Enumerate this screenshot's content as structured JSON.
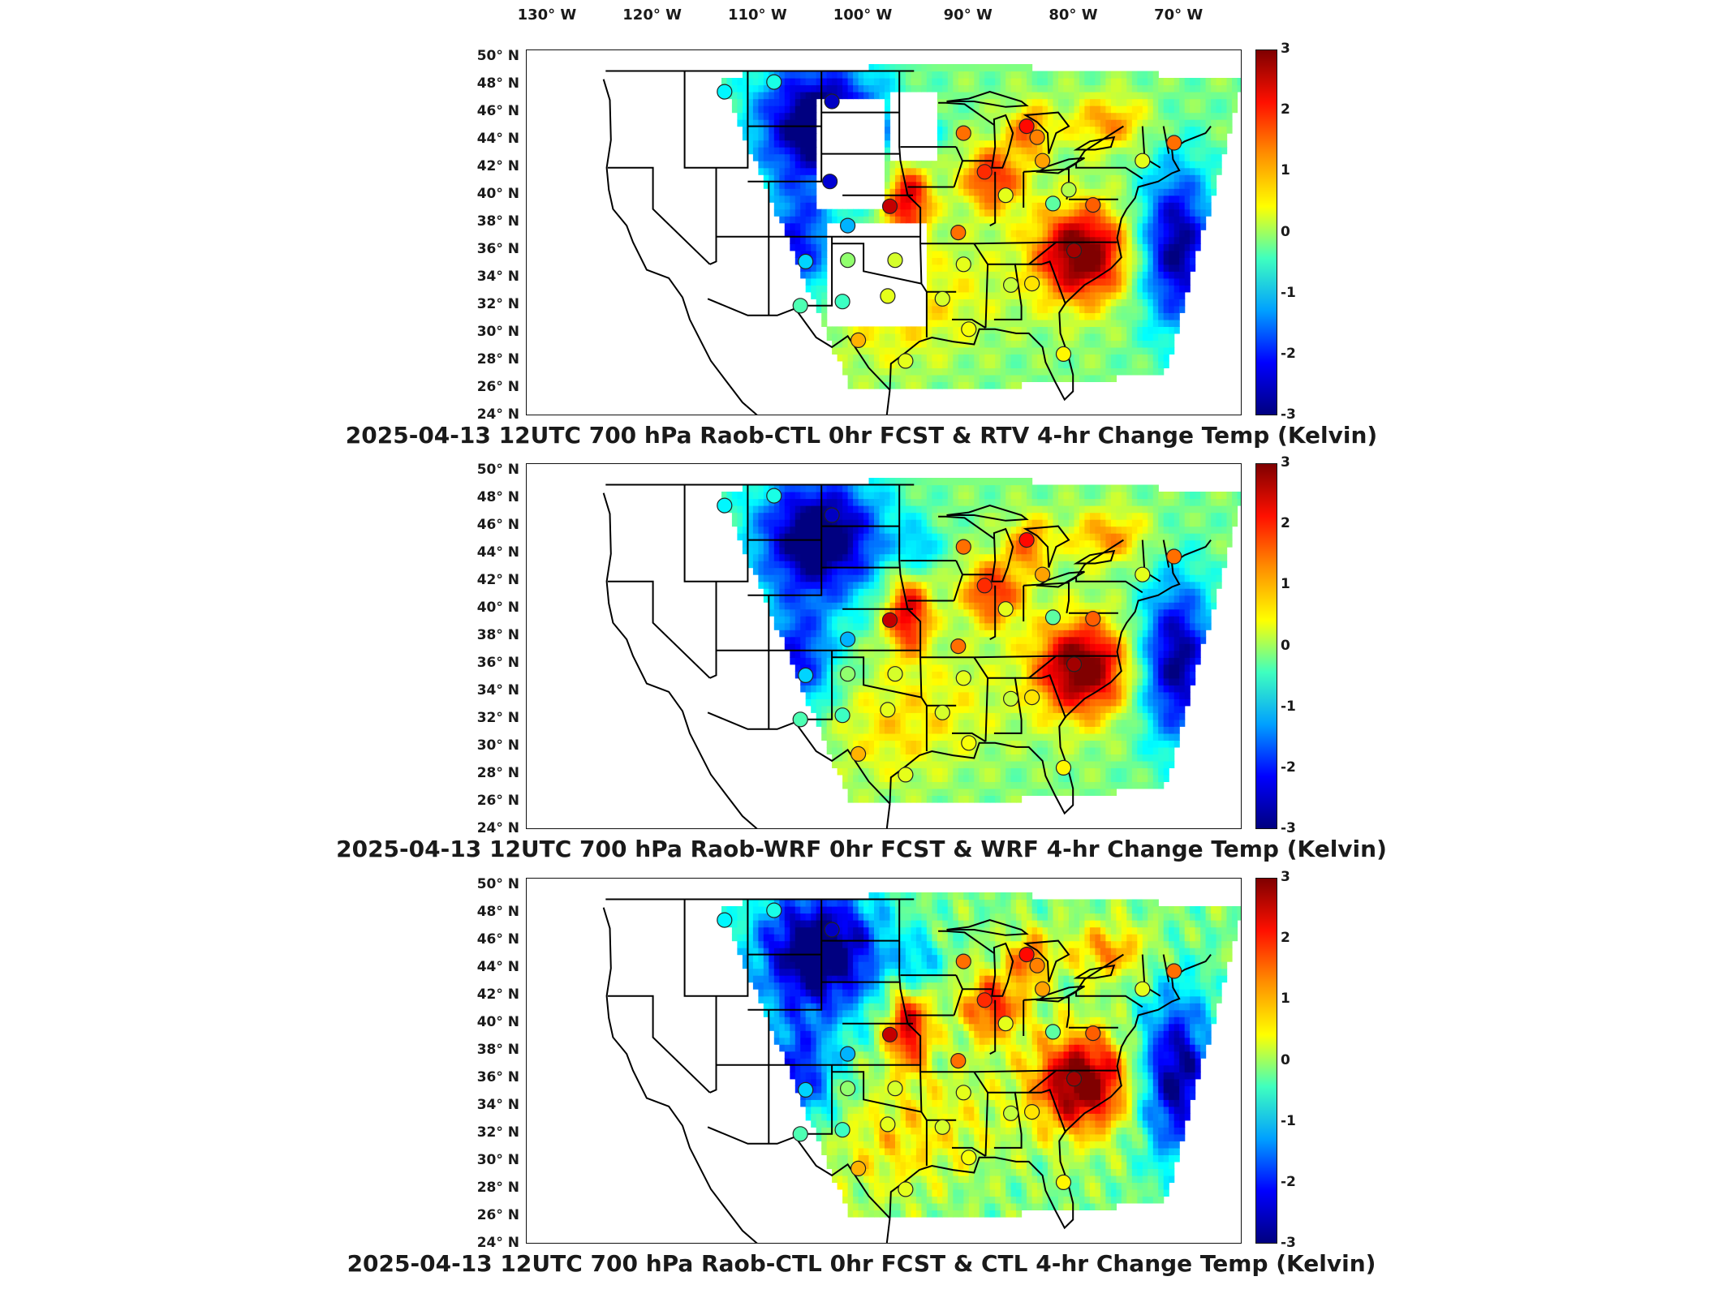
{
  "lon_labels": [
    "130° W",
    "120° W",
    "110° W",
    "100° W",
    "90° W",
    "80° W",
    "70° W"
  ],
  "lat_labels": [
    "50° N",
    "48° N",
    "46° N",
    "44° N",
    "42° N",
    "40° N",
    "38° N",
    "36° N",
    "34° N",
    "32° N",
    "30° N",
    "28° N",
    "26° N",
    "24° N"
  ],
  "colorbar": {
    "ticks": [
      "3",
      "2",
      "1",
      "0",
      "-1",
      "-2",
      "-3"
    ],
    "range": [
      -3,
      3
    ],
    "colormap": "jet",
    "colors": [
      "#00007f",
      "#0000ff",
      "#00a0ff",
      "#3fffbf",
      "#ffff00",
      "#ff8f00",
      "#ff1000",
      "#7f0000"
    ]
  },
  "panels": [
    {
      "title": "2025-04-13 12UTC 700 hPa Raob-CTL 0hr FCST & RTV 4-hr Change Temp (Kelvin)",
      "field": "RTV 4-hr Change Temp",
      "markers": [
        {
          "lon": -113.2,
          "lat": 47.5,
          "value": -0.8
        },
        {
          "lon": -108.5,
          "lat": 48.2,
          "value": -0.6
        },
        {
          "lon": -103.0,
          "lat": 46.8,
          "value": -2.6
        },
        {
          "lon": -90.5,
          "lat": 44.5,
          "value": 1.6
        },
        {
          "lon": -84.5,
          "lat": 45.0,
          "value": 2.2
        },
        {
          "lon": -83.5,
          "lat": 44.2,
          "value": 1.5
        },
        {
          "lon": -83.0,
          "lat": 42.5,
          "value": 1.3
        },
        {
          "lon": -103.2,
          "lat": 41.0,
          "value": -2.5
        },
        {
          "lon": -88.5,
          "lat": 41.7,
          "value": 2.0
        },
        {
          "lon": -86.5,
          "lat": 40.0,
          "value": 0.6
        },
        {
          "lon": -82.0,
          "lat": 39.4,
          "value": -0.2
        },
        {
          "lon": -80.5,
          "lat": 40.4,
          "value": 0.3
        },
        {
          "lon": -97.5,
          "lat": 39.2,
          "value": 2.6
        },
        {
          "lon": -101.5,
          "lat": 37.8,
          "value": -1.2
        },
        {
          "lon": -91.0,
          "lat": 37.3,
          "value": 1.6
        },
        {
          "lon": -105.5,
          "lat": 35.2,
          "value": -1.0
        },
        {
          "lon": -101.5,
          "lat": 35.3,
          "value": 0.1
        },
        {
          "lon": -97.0,
          "lat": 35.3,
          "value": 0.5
        },
        {
          "lon": -90.5,
          "lat": 35.0,
          "value": 0.6
        },
        {
          "lon": -86.0,
          "lat": 33.5,
          "value": 0.4
        },
        {
          "lon": -84.0,
          "lat": 33.6,
          "value": 0.9
        },
        {
          "lon": -80.0,
          "lat": 36.0,
          "value": 2.8
        },
        {
          "lon": -78.2,
          "lat": 39.3,
          "value": 1.7
        },
        {
          "lon": -73.5,
          "lat": 42.5,
          "value": 0.6
        },
        {
          "lon": -70.5,
          "lat": 43.8,
          "value": 1.6
        },
        {
          "lon": -106.0,
          "lat": 32.0,
          "value": -0.3
        },
        {
          "lon": -102.0,
          "lat": 32.3,
          "value": -0.4
        },
        {
          "lon": -97.7,
          "lat": 32.7,
          "value": 0.6
        },
        {
          "lon": -92.5,
          "lat": 32.5,
          "value": 0.5
        },
        {
          "lon": -100.5,
          "lat": 29.5,
          "value": 1.2
        },
        {
          "lon": -96.0,
          "lat": 28.0,
          "value": 0.6
        },
        {
          "lon": -90.0,
          "lat": 30.3,
          "value": 0.7
        },
        {
          "lon": -81.0,
          "lat": 28.5,
          "value": 0.8
        }
      ]
    },
    {
      "title": "2025-04-13 12UTC 700 hPa Raob-WRF 0hr FCST & WRF 4-hr Change Temp (Kelvin)",
      "field": "WRF 4-hr Change Temp",
      "markers": [
        {
          "lon": -113.2,
          "lat": 47.5,
          "value": -0.8
        },
        {
          "lon": -108.5,
          "lat": 48.2,
          "value": -0.6
        },
        {
          "lon": -103.0,
          "lat": 46.8,
          "value": -2.6
        },
        {
          "lon": -90.5,
          "lat": 44.5,
          "value": 1.6
        },
        {
          "lon": -84.5,
          "lat": 45.0,
          "value": 2.2
        },
        {
          "lon": -83.0,
          "lat": 42.5,
          "value": 1.3
        },
        {
          "lon": -88.5,
          "lat": 41.7,
          "value": 2.0
        },
        {
          "lon": -86.5,
          "lat": 40.0,
          "value": 0.6
        },
        {
          "lon": -82.0,
          "lat": 39.4,
          "value": -0.2
        },
        {
          "lon": -97.5,
          "lat": 39.2,
          "value": 2.6
        },
        {
          "lon": -101.5,
          "lat": 37.8,
          "value": -1.2
        },
        {
          "lon": -91.0,
          "lat": 37.3,
          "value": 1.6
        },
        {
          "lon": -105.5,
          "lat": 35.2,
          "value": -1.0
        },
        {
          "lon": -101.5,
          "lat": 35.3,
          "value": 0.1
        },
        {
          "lon": -97.0,
          "lat": 35.3,
          "value": 0.5
        },
        {
          "lon": -90.5,
          "lat": 35.0,
          "value": 0.6
        },
        {
          "lon": -86.0,
          "lat": 33.5,
          "value": 0.4
        },
        {
          "lon": -84.0,
          "lat": 33.6,
          "value": 0.9
        },
        {
          "lon": -80.0,
          "lat": 36.0,
          "value": 2.8
        },
        {
          "lon": -78.2,
          "lat": 39.3,
          "value": 1.7
        },
        {
          "lon": -73.5,
          "lat": 42.5,
          "value": 0.6
        },
        {
          "lon": -70.5,
          "lat": 43.8,
          "value": 1.6
        },
        {
          "lon": -106.0,
          "lat": 32.0,
          "value": -0.3
        },
        {
          "lon": -102.0,
          "lat": 32.3,
          "value": -0.4
        },
        {
          "lon": -97.7,
          "lat": 32.7,
          "value": 0.6
        },
        {
          "lon": -92.5,
          "lat": 32.5,
          "value": 0.5
        },
        {
          "lon": -100.5,
          "lat": 29.5,
          "value": 1.2
        },
        {
          "lon": -96.0,
          "lat": 28.0,
          "value": 0.6
        },
        {
          "lon": -90.0,
          "lat": 30.3,
          "value": 0.7
        },
        {
          "lon": -81.0,
          "lat": 28.5,
          "value": 0.8
        }
      ]
    },
    {
      "title": "2025-04-13 12UTC 700 hPa Raob-CTL 0hr FCST & CTL 4-hr Change Temp (Kelvin)",
      "field": "CTL 4-hr Change Temp",
      "markers": [
        {
          "lon": -113.2,
          "lat": 47.5,
          "value": -0.8
        },
        {
          "lon": -108.5,
          "lat": 48.2,
          "value": -0.6
        },
        {
          "lon": -103.0,
          "lat": 46.8,
          "value": -2.6
        },
        {
          "lon": -90.5,
          "lat": 44.5,
          "value": 1.6
        },
        {
          "lon": -84.5,
          "lat": 45.0,
          "value": 2.2
        },
        {
          "lon": -83.5,
          "lat": 44.2,
          "value": 1.5
        },
        {
          "lon": -83.0,
          "lat": 42.5,
          "value": 1.3
        },
        {
          "lon": -88.5,
          "lat": 41.7,
          "value": 2.0
        },
        {
          "lon": -86.5,
          "lat": 40.0,
          "value": 0.6
        },
        {
          "lon": -82.0,
          "lat": 39.4,
          "value": -0.2
        },
        {
          "lon": -97.5,
          "lat": 39.2,
          "value": 2.6
        },
        {
          "lon": -101.5,
          "lat": 37.8,
          "value": -1.2
        },
        {
          "lon": -91.0,
          "lat": 37.3,
          "value": 1.6
        },
        {
          "lon": -105.5,
          "lat": 35.2,
          "value": -1.0
        },
        {
          "lon": -101.5,
          "lat": 35.3,
          "value": 0.1
        },
        {
          "lon": -97.0,
          "lat": 35.3,
          "value": 0.5
        },
        {
          "lon": -90.5,
          "lat": 35.0,
          "value": 0.6
        },
        {
          "lon": -86.0,
          "lat": 33.5,
          "value": 0.4
        },
        {
          "lon": -84.0,
          "lat": 33.6,
          "value": 0.9
        },
        {
          "lon": -80.0,
          "lat": 36.0,
          "value": 2.8
        },
        {
          "lon": -78.2,
          "lat": 39.3,
          "value": 1.7
        },
        {
          "lon": -73.5,
          "lat": 42.5,
          "value": 0.6
        },
        {
          "lon": -70.5,
          "lat": 43.8,
          "value": 1.6
        },
        {
          "lon": -106.0,
          "lat": 32.0,
          "value": -0.3
        },
        {
          "lon": -102.0,
          "lat": 32.3,
          "value": -0.4
        },
        {
          "lon": -97.7,
          "lat": 32.7,
          "value": 0.6
        },
        {
          "lon": -92.5,
          "lat": 32.5,
          "value": 0.5
        },
        {
          "lon": -100.5,
          "lat": 29.5,
          "value": 1.2
        },
        {
          "lon": -96.0,
          "lat": 28.0,
          "value": 0.6
        },
        {
          "lon": -90.0,
          "lat": 30.3,
          "value": 0.7
        },
        {
          "lon": -81.0,
          "lat": 28.5,
          "value": 0.8
        }
      ]
    }
  ]
}
